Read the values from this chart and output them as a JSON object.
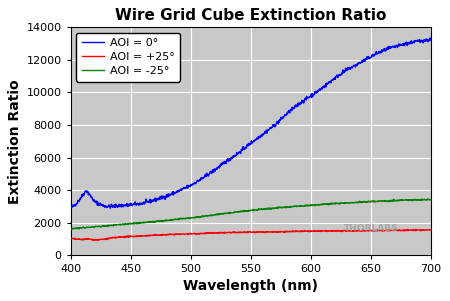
{
  "title": "Wire Grid Cube Extinction Ratio",
  "xlabel": "Wavelength (nm)",
  "ylabel": "Extinction Ratio",
  "xlim": [
    400,
    700
  ],
  "ylim": [
    0,
    14000
  ],
  "yticks": [
    0,
    2000,
    4000,
    6000,
    8000,
    10000,
    12000,
    14000
  ],
  "xticks": [
    400,
    450,
    500,
    550,
    600,
    650,
    700
  ],
  "figure_bg_color": "#ffffff",
  "plot_bg_color": "#c8c8c8",
  "grid_color": "#ffffff",
  "title_color": "#000000",
  "xlabel_color": "#000000",
  "ylabel_color": "#000000",
  "legend_labels": [
    "AOI = 0°",
    "AOI = +25°",
    "AOI = -25°"
  ],
  "line_colors": [
    "#0000ff",
    "#ff0000",
    "#008000"
  ],
  "watermark": "THORLABS",
  "watermark_color": "#a0a0a0",
  "blue_wl": [
    400,
    405,
    413,
    420,
    427,
    432,
    440,
    450,
    460,
    470,
    480,
    490,
    500,
    510,
    520,
    530,
    540,
    550,
    560,
    570,
    580,
    590,
    600,
    608,
    615,
    622,
    630,
    638,
    645,
    655,
    665,
    675,
    685,
    695,
    700
  ],
  "blue_val": [
    2900,
    3200,
    4000,
    3300,
    3050,
    3000,
    3050,
    3100,
    3200,
    3400,
    3650,
    3950,
    4300,
    4750,
    5250,
    5800,
    6300,
    6900,
    7450,
    8000,
    8700,
    9300,
    9800,
    10200,
    10600,
    11000,
    11400,
    11700,
    12000,
    12400,
    12700,
    12900,
    13100,
    13200,
    13250
  ],
  "red_wl": [
    400,
    405,
    410,
    415,
    418,
    422,
    428,
    435,
    445,
    460,
    480,
    500,
    530,
    560,
    600,
    640,
    680,
    700
  ],
  "red_val": [
    1050,
    1000,
    980,
    1020,
    970,
    950,
    1000,
    1080,
    1150,
    1200,
    1280,
    1330,
    1400,
    1440,
    1490,
    1520,
    1550,
    1560
  ],
  "green_wl": [
    400,
    410,
    420,
    430,
    440,
    455,
    470,
    485,
    500,
    520,
    540,
    560,
    580,
    600,
    620,
    640,
    660,
    680,
    700
  ],
  "green_val": [
    1650,
    1700,
    1760,
    1820,
    1890,
    1980,
    2080,
    2190,
    2300,
    2500,
    2680,
    2840,
    2970,
    3080,
    3180,
    3270,
    3340,
    3400,
    3430
  ],
  "blue_noise_std": 55,
  "red_noise_std": 18,
  "green_noise_std": 20
}
